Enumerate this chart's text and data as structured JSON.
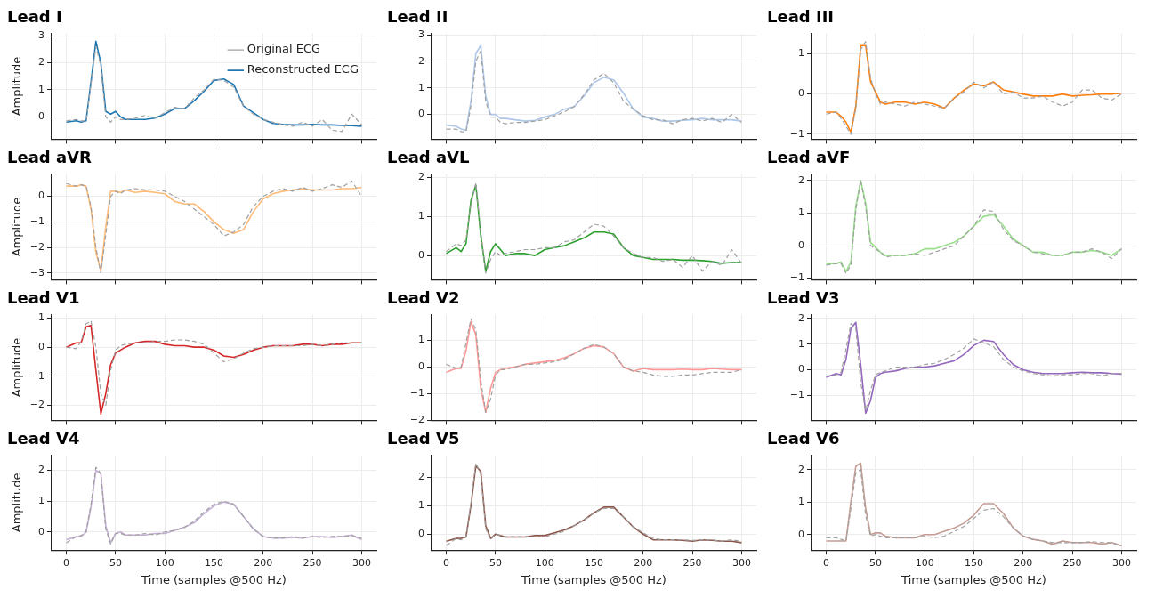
{
  "chart_data": [
    {
      "type": "line",
      "title": "Lead I",
      "ylabel": "Amplitude",
      "tick_labels": "y",
      "grid": true,
      "legend": "top right",
      "x": [
        0,
        10,
        15,
        20,
        25,
        30,
        35,
        40,
        45,
        50,
        55,
        60,
        70,
        80,
        90,
        100,
        110,
        120,
        130,
        140,
        150,
        160,
        170,
        180,
        190,
        200,
        210,
        220,
        230,
        240,
        250,
        260,
        270,
        280,
        290,
        300
      ],
      "xlim": [
        -15,
        315
      ],
      "xticks": [
        0,
        50,
        100,
        150,
        200,
        250,
        300
      ],
      "ylim": [
        -0.83,
        3.09
      ],
      "yticks": [
        0,
        1,
        2,
        3
      ],
      "series": [
        {
          "name": "Original ECG",
          "color": "#a0a0a0",
          "line_style": "dashed",
          "values": [
            -0.15,
            -0.1,
            -0.15,
            -0.15,
            1.2,
            2.6,
            1.9,
            0.0,
            -0.2,
            0.0,
            -0.1,
            -0.1,
            -0.05,
            0.05,
            -0.05,
            0.15,
            0.35,
            0.3,
            0.7,
            1.0,
            1.4,
            1.35,
            1.1,
            0.4,
            0.1,
            -0.1,
            -0.2,
            -0.3,
            -0.35,
            -0.2,
            -0.35,
            -0.1,
            -0.5,
            -0.55,
            0.1,
            -0.3
          ]
        },
        {
          "name": "Reconstructed ECG",
          "color": "#1f77b4",
          "line_style": "solid",
          "values": [
            -0.2,
            -0.15,
            -0.2,
            -0.15,
            1.3,
            2.8,
            2.0,
            0.2,
            0.1,
            0.2,
            0.0,
            -0.1,
            -0.1,
            -0.1,
            -0.05,
            0.1,
            0.3,
            0.3,
            0.6,
            0.95,
            1.35,
            1.4,
            1.2,
            0.4,
            0.15,
            -0.1,
            -0.25,
            -0.28,
            -0.3,
            -0.3,
            -0.28,
            -0.3,
            -0.3,
            -0.32,
            -0.33,
            -0.35
          ]
        }
      ]
    },
    {
      "type": "line",
      "title": "Lead II",
      "tick_labels": "y",
      "grid": true,
      "x": [
        0,
        10,
        15,
        20,
        25,
        30,
        35,
        40,
        45,
        50,
        55,
        60,
        70,
        80,
        90,
        100,
        110,
        120,
        130,
        140,
        150,
        160,
        170,
        180,
        190,
        200,
        210,
        220,
        230,
        240,
        250,
        260,
        270,
        280,
        290,
        300
      ],
      "xlim": [
        -15,
        315
      ],
      "xticks": [
        0,
        50,
        100,
        150,
        200,
        250,
        300
      ],
      "ylim": [
        -0.93,
        3.05
      ],
      "yticks": [
        0,
        1,
        2,
        3
      ],
      "series": [
        {
          "color": "#a0a0a0",
          "line_style": "dashed",
          "values": [
            -0.55,
            -0.55,
            -0.65,
            -0.65,
            0.3,
            2.0,
            2.4,
            0.5,
            -0.1,
            -0.1,
            -0.3,
            -0.35,
            -0.3,
            -0.3,
            -0.25,
            -0.2,
            -0.05,
            0.1,
            0.3,
            0.75,
            1.3,
            1.55,
            1.2,
            0.5,
            0.2,
            -0.05,
            -0.2,
            -0.2,
            -0.35,
            -0.2,
            -0.15,
            -0.25,
            -0.15,
            -0.3,
            0.0,
            -0.3
          ]
        },
        {
          "color": "#aec7e8",
          "line_style": "solid",
          "values": [
            -0.4,
            -0.45,
            -0.55,
            -0.6,
            0.5,
            2.3,
            2.6,
            0.7,
            0.0,
            0.0,
            -0.15,
            -0.15,
            -0.2,
            -0.25,
            -0.22,
            -0.1,
            0.0,
            0.2,
            0.3,
            0.7,
            1.2,
            1.4,
            1.3,
            0.8,
            0.2,
            -0.1,
            -0.15,
            -0.25,
            -0.25,
            -0.22,
            -0.2,
            -0.15,
            -0.2,
            -0.2,
            -0.2,
            -0.25
          ]
        }
      ]
    },
    {
      "type": "line",
      "title": "Lead III",
      "tick_labels": "y",
      "grid": true,
      "x": [
        0,
        10,
        15,
        20,
        25,
        30,
        35,
        40,
        45,
        50,
        55,
        60,
        70,
        80,
        90,
        100,
        110,
        120,
        130,
        140,
        150,
        160,
        170,
        180,
        190,
        200,
        210,
        220,
        230,
        240,
        250,
        260,
        270,
        280,
        290,
        300
      ],
      "xlim": [
        -15,
        315
      ],
      "xticks": [
        0,
        50,
        100,
        150,
        200,
        250,
        300
      ],
      "ylim": [
        -1.12,
        1.5
      ],
      "yticks": [
        -1,
        0,
        1
      ],
      "series": [
        {
          "color": "#a0a0a0",
          "line_style": "dashed",
          "values": [
            -0.5,
            -0.45,
            -0.6,
            -0.8,
            -1.0,
            -0.35,
            1.1,
            1.3,
            0.4,
            0.0,
            -0.25,
            -0.2,
            -0.25,
            -0.3,
            -0.2,
            -0.25,
            -0.3,
            -0.35,
            -0.1,
            0.05,
            0.3,
            0.15,
            0.3,
            0.0,
            0.05,
            -0.1,
            -0.1,
            -0.05,
            -0.2,
            -0.3,
            -0.2,
            0.1,
            0.1,
            -0.1,
            -0.15,
            0.0
          ]
        },
        {
          "color": "#ff7f0e",
          "line_style": "solid",
          "values": [
            -0.45,
            -0.45,
            -0.55,
            -0.7,
            -0.95,
            -0.3,
            1.2,
            1.2,
            0.3,
            0.05,
            -0.2,
            -0.25,
            -0.2,
            -0.2,
            -0.25,
            -0.2,
            -0.25,
            -0.35,
            -0.1,
            0.1,
            0.25,
            0.2,
            0.3,
            0.1,
            0.05,
            0.0,
            -0.05,
            -0.05,
            -0.05,
            0.0,
            -0.05,
            -0.03,
            -0.02,
            0.0,
            0.0,
            0.02
          ]
        }
      ]
    },
    {
      "type": "line",
      "title": "Lead aVR",
      "ylabel": "Amplitude",
      "tick_labels": "y",
      "grid": true,
      "x": [
        0,
        10,
        15,
        20,
        25,
        30,
        35,
        40,
        45,
        50,
        55,
        60,
        70,
        80,
        90,
        100,
        110,
        120,
        130,
        140,
        150,
        160,
        170,
        180,
        190,
        200,
        210,
        220,
        230,
        240,
        250,
        260,
        270,
        280,
        290,
        300
      ],
      "xlim": [
        -15,
        315
      ],
      "xticks": [
        0,
        50,
        100,
        150,
        200,
        250,
        300
      ],
      "ylim": [
        -3.26,
        0.87
      ],
      "yticks": [
        -3,
        -2,
        -1,
        0
      ],
      "series": [
        {
          "color": "#a0a0a0",
          "line_style": "dashed",
          "values": [
            0.5,
            0.4,
            0.45,
            0.4,
            -0.4,
            -2.0,
            -3.0,
            -1.5,
            0.0,
            0.2,
            0.1,
            0.25,
            0.3,
            0.25,
            0.25,
            0.2,
            0.0,
            -0.2,
            -0.5,
            -0.8,
            -1.1,
            -1.55,
            -1.4,
            -1.1,
            -0.4,
            0.0,
            0.2,
            0.3,
            0.2,
            0.35,
            0.2,
            0.3,
            0.45,
            0.35,
            0.6,
            0.0
          ]
        },
        {
          "color": "#ffbb78",
          "line_style": "solid",
          "values": [
            0.4,
            0.4,
            0.45,
            0.4,
            -0.5,
            -2.2,
            -2.9,
            -1.2,
            0.2,
            0.2,
            0.15,
            0.25,
            0.15,
            0.2,
            0.15,
            0.1,
            -0.2,
            -0.3,
            -0.3,
            -0.6,
            -1.0,
            -1.3,
            -1.45,
            -1.3,
            -0.6,
            -0.1,
            0.1,
            0.2,
            0.25,
            0.3,
            0.25,
            0.25,
            0.25,
            0.3,
            0.3,
            0.35
          ]
        }
      ]
    },
    {
      "type": "line",
      "title": "Lead aVL",
      "tick_labels": "y",
      "grid": true,
      "x": [
        0,
        10,
        15,
        20,
        25,
        30,
        35,
        40,
        45,
        50,
        55,
        60,
        70,
        80,
        90,
        100,
        110,
        120,
        130,
        140,
        150,
        160,
        170,
        180,
        190,
        200,
        210,
        220,
        230,
        240,
        250,
        260,
        270,
        280,
        290,
        300
      ],
      "xlim": [
        -15,
        315
      ],
      "xticks": [
        0,
        50,
        100,
        150,
        200,
        250,
        300
      ],
      "ylim": [
        -0.62,
        2.08
      ],
      "yticks": [
        0,
        1,
        2
      ],
      "series": [
        {
          "color": "#a0a0a0",
          "line_style": "dashed",
          "values": [
            0.1,
            0.3,
            0.25,
            0.4,
            1.3,
            1.85,
            0.6,
            -0.45,
            -0.1,
            0.1,
            0.0,
            0.05,
            0.1,
            0.15,
            0.15,
            0.2,
            0.2,
            0.35,
            0.4,
            0.6,
            0.8,
            0.75,
            0.5,
            0.2,
            0.05,
            -0.05,
            -0.05,
            -0.15,
            -0.1,
            -0.3,
            0.0,
            -0.4,
            -0.15,
            -0.25,
            0.15,
            -0.2
          ]
        },
        {
          "color": "#2ca02c",
          "line_style": "solid",
          "values": [
            0.05,
            0.2,
            0.1,
            0.3,
            1.4,
            1.8,
            0.5,
            -0.4,
            0.1,
            0.3,
            0.15,
            0.0,
            0.05,
            0.05,
            0.0,
            0.15,
            0.2,
            0.25,
            0.35,
            0.45,
            0.6,
            0.6,
            0.55,
            0.2,
            0.0,
            -0.05,
            -0.1,
            -0.1,
            -0.1,
            -0.12,
            -0.12,
            -0.13,
            -0.15,
            -0.2,
            -0.18,
            -0.18
          ]
        }
      ]
    },
    {
      "type": "line",
      "title": "Lead aVF",
      "tick_labels": "y",
      "grid": true,
      "x": [
        0,
        10,
        15,
        20,
        25,
        30,
        35,
        40,
        45,
        50,
        55,
        60,
        70,
        80,
        90,
        100,
        110,
        120,
        130,
        140,
        150,
        160,
        170,
        180,
        190,
        200,
        210,
        220,
        230,
        240,
        250,
        260,
        270,
        280,
        290,
        300
      ],
      "xlim": [
        -15,
        315
      ],
      "xticks": [
        0,
        50,
        100,
        150,
        200,
        250,
        300
      ],
      "ylim": [
        -1.05,
        2.2
      ],
      "yticks": [
        -1,
        0,
        1,
        2
      ],
      "series": [
        {
          "color": "#a0a0a0",
          "line_style": "dashed",
          "values": [
            -0.6,
            -0.55,
            -0.55,
            -0.85,
            -0.6,
            1.1,
            2.0,
            1.2,
            0.0,
            -0.1,
            -0.2,
            -0.35,
            -0.3,
            -0.3,
            -0.25,
            -0.3,
            -0.2,
            -0.1,
            0.0,
            0.3,
            0.6,
            1.1,
            1.05,
            0.5,
            0.15,
            0.0,
            -0.2,
            -0.25,
            -0.3,
            -0.3,
            -0.2,
            -0.2,
            -0.1,
            -0.2,
            -0.4,
            -0.1
          ]
        },
        {
          "color": "#98df8a",
          "line_style": "solid",
          "values": [
            -0.55,
            -0.55,
            -0.5,
            -0.8,
            -0.5,
            1.2,
            2.0,
            1.3,
            0.1,
            -0.05,
            -0.2,
            -0.3,
            -0.3,
            -0.3,
            -0.25,
            -0.1,
            -0.1,
            0.0,
            0.1,
            0.3,
            0.6,
            0.9,
            0.95,
            0.6,
            0.2,
            0.0,
            -0.2,
            -0.2,
            -0.3,
            -0.3,
            -0.2,
            -0.2,
            -0.15,
            -0.2,
            -0.3,
            -0.1
          ]
        }
      ]
    },
    {
      "type": "line",
      "title": "Lead V1",
      "ylabel": "Amplitude",
      "tick_labels": "y",
      "grid": true,
      "x": [
        0,
        10,
        15,
        20,
        25,
        30,
        35,
        40,
        45,
        50,
        55,
        60,
        70,
        80,
        90,
        100,
        110,
        120,
        130,
        140,
        150,
        160,
        170,
        180,
        190,
        200,
        210,
        220,
        230,
        240,
        250,
        260,
        270,
        280,
        290,
        300
      ],
      "xlim": [
        -15,
        315
      ],
      "xticks": [
        0,
        50,
        100,
        150,
        200,
        250,
        300
      ],
      "ylim": [
        -2.52,
        1.12
      ],
      "yticks": [
        -2,
        -1,
        0,
        1
      ],
      "series": [
        {
          "color": "#a0a0a0",
          "line_style": "dashed",
          "values": [
            0.0,
            -0.05,
            0.2,
            0.8,
            0.9,
            0.0,
            -1.6,
            -2.0,
            -0.8,
            -0.1,
            0.05,
            0.1,
            0.15,
            0.15,
            0.2,
            0.2,
            0.25,
            0.25,
            0.2,
            0.1,
            -0.2,
            -0.5,
            -0.4,
            -0.2,
            -0.05,
            0.0,
            0.05,
            0.05,
            0.05,
            0.05,
            0.1,
            0.05,
            0.1,
            0.15,
            0.15,
            0.15
          ]
        },
        {
          "color": "#d62728",
          "line_style": "solid",
          "values": [
            0.0,
            0.15,
            0.15,
            0.7,
            0.75,
            -0.8,
            -2.3,
            -1.6,
            -0.6,
            -0.2,
            -0.1,
            0.0,
            0.15,
            0.2,
            0.2,
            0.1,
            0.05,
            0.05,
            0.0,
            0.0,
            -0.1,
            -0.3,
            -0.35,
            -0.25,
            -0.1,
            0.0,
            0.05,
            0.05,
            0.05,
            0.1,
            0.1,
            0.05,
            0.1,
            0.1,
            0.15,
            0.15
          ]
        }
      ]
    },
    {
      "type": "line",
      "title": "Lead V2",
      "tick_labels": "y",
      "grid": true,
      "x": [
        0,
        10,
        15,
        20,
        25,
        30,
        35,
        40,
        45,
        50,
        55,
        60,
        70,
        80,
        90,
        100,
        110,
        120,
        130,
        140,
        150,
        160,
        170,
        180,
        190,
        200,
        210,
        220,
        230,
        240,
        250,
        260,
        270,
        280,
        290,
        300
      ],
      "xlim": [
        -15,
        315
      ],
      "xticks": [
        0,
        50,
        100,
        150,
        200,
        250,
        300
      ],
      "ylim": [
        -2,
        1.96
      ],
      "yticks": [
        -2,
        -1,
        0,
        1
      ],
      "series": [
        {
          "color": "#a0a0a0",
          "line_style": "dashed",
          "values": [
            0.1,
            -0.05,
            0.0,
            0.9,
            1.8,
            1.4,
            -0.5,
            -1.7,
            -1.2,
            -0.3,
            -0.1,
            -0.1,
            0.0,
            0.1,
            0.1,
            0.15,
            0.2,
            0.3,
            0.5,
            0.7,
            0.85,
            0.75,
            0.5,
            0.0,
            -0.15,
            -0.2,
            -0.3,
            -0.35,
            -0.35,
            -0.3,
            -0.3,
            -0.25,
            -0.2,
            -0.2,
            -0.2,
            -0.1
          ]
        },
        {
          "color": "#ff9896",
          "line_style": "solid",
          "values": [
            -0.2,
            -0.05,
            -0.05,
            0.6,
            1.7,
            1.2,
            -0.8,
            -1.7,
            -0.8,
            -0.2,
            -0.1,
            -0.05,
            0.0,
            0.1,
            0.15,
            0.2,
            0.25,
            0.35,
            0.5,
            0.7,
            0.8,
            0.75,
            0.5,
            0.0,
            -0.15,
            -0.05,
            -0.1,
            -0.1,
            -0.1,
            -0.08,
            -0.1,
            -0.1,
            -0.05,
            -0.08,
            -0.1,
            -0.1
          ]
        }
      ]
    },
    {
      "type": "line",
      "title": "Lead V3",
      "tick_labels": "y",
      "grid": true,
      "x": [
        0,
        10,
        15,
        20,
        25,
        30,
        35,
        40,
        45,
        50,
        55,
        60,
        70,
        80,
        90,
        100,
        110,
        120,
        130,
        140,
        150,
        160,
        170,
        180,
        190,
        200,
        210,
        220,
        230,
        240,
        250,
        260,
        270,
        280,
        290,
        300
      ],
      "xlim": [
        -15,
        315
      ],
      "xticks": [
        0,
        50,
        100,
        150,
        200,
        250,
        300
      ],
      "ylim": [
        -1.98,
        2.15
      ],
      "yticks": [
        -1,
        0,
        1,
        2
      ],
      "series": [
        {
          "color": "#a0a0a0",
          "line_style": "dashed",
          "values": [
            -0.25,
            -0.2,
            -0.1,
            0.8,
            1.8,
            1.6,
            -0.5,
            -1.6,
            -0.8,
            -0.2,
            -0.1,
            -0.05,
            0.1,
            0.1,
            0.1,
            0.2,
            0.25,
            0.4,
            0.6,
            0.85,
            1.2,
            1.05,
            0.9,
            0.4,
            0.1,
            -0.05,
            -0.15,
            -0.2,
            -0.25,
            -0.2,
            -0.2,
            -0.15,
            -0.15,
            -0.25,
            -0.15,
            -0.15
          ]
        },
        {
          "color": "#9467bd",
          "line_style": "solid",
          "values": [
            -0.3,
            -0.15,
            -0.2,
            0.4,
            1.6,
            1.85,
            0.2,
            -1.7,
            -1.2,
            -0.3,
            -0.15,
            -0.1,
            -0.05,
            0.05,
            0.1,
            0.1,
            0.15,
            0.25,
            0.35,
            0.6,
            0.95,
            1.15,
            1.1,
            0.6,
            0.2,
            0.0,
            -0.1,
            -0.15,
            -0.15,
            -0.15,
            -0.12,
            -0.1,
            -0.12,
            -0.12,
            -0.15,
            -0.17
          ]
        }
      ]
    },
    {
      "type": "line",
      "title": "Lead V4",
      "ylabel": "Amplitude",
      "xlabel": "Time (samples @500 Hz)",
      "grid": true,
      "x": [
        0,
        10,
        15,
        20,
        25,
        30,
        35,
        40,
        45,
        50,
        55,
        60,
        70,
        80,
        90,
        100,
        110,
        120,
        130,
        140,
        150,
        160,
        170,
        180,
        190,
        200,
        210,
        220,
        230,
        240,
        250,
        260,
        270,
        280,
        290,
        300
      ],
      "xlim": [
        -15,
        315
      ],
      "xticks": [
        0,
        50,
        100,
        150,
        200,
        250,
        300
      ],
      "ylim": [
        -0.59,
        2.49
      ],
      "yticks": [
        0,
        1,
        2
      ],
      "series": [
        {
          "color": "#a0a0a0",
          "line_style": "dashed",
          "values": [
            -0.35,
            -0.15,
            -0.12,
            0.0,
            0.9,
            2.1,
            1.9,
            0.1,
            -0.4,
            -0.05,
            -0.05,
            -0.1,
            -0.1,
            -0.05,
            -0.1,
            0.0,
            0.05,
            0.15,
            0.35,
            0.65,
            0.9,
            1.0,
            0.9,
            0.5,
            0.1,
            -0.15,
            -0.2,
            -0.2,
            -0.15,
            -0.2,
            -0.15,
            -0.18,
            -0.15,
            -0.15,
            -0.12,
            -0.2
          ]
        },
        {
          "color": "#c5b0d5",
          "line_style": "solid",
          "values": [
            -0.25,
            -0.15,
            -0.15,
            0.0,
            0.8,
            2.0,
            1.9,
            0.2,
            -0.35,
            -0.05,
            0.0,
            -0.1,
            -0.1,
            -0.1,
            -0.05,
            -0.05,
            0.05,
            0.15,
            0.3,
            0.6,
            0.85,
            0.97,
            0.9,
            0.5,
            0.1,
            -0.15,
            -0.2,
            -0.2,
            -0.18,
            -0.2,
            -0.15,
            -0.15,
            -0.18,
            -0.15,
            -0.1,
            -0.25
          ]
        }
      ]
    },
    {
      "type": "line",
      "title": "Lead V5",
      "xlabel": "Time (samples @500 Hz)",
      "grid": true,
      "x": [
        0,
        10,
        15,
        20,
        25,
        30,
        35,
        40,
        45,
        50,
        55,
        60,
        70,
        80,
        90,
        100,
        110,
        120,
        130,
        140,
        150,
        160,
        170,
        180,
        190,
        200,
        210,
        220,
        230,
        240,
        250,
        260,
        270,
        280,
        290,
        300
      ],
      "xlim": [
        -15,
        315
      ],
      "xticks": [
        0,
        50,
        100,
        150,
        200,
        250,
        300
      ],
      "ylim": [
        -0.56,
        2.77
      ],
      "yticks": [
        0,
        1,
        2
      ],
      "series": [
        {
          "color": "#a0a0a0",
          "line_style": "dashed",
          "values": [
            -0.4,
            -0.15,
            -0.2,
            -0.1,
            1.1,
            2.5,
            2.1,
            0.2,
            -0.2,
            0.0,
            -0.05,
            -0.1,
            -0.1,
            -0.1,
            -0.1,
            -0.1,
            0.0,
            0.1,
            0.3,
            0.5,
            0.75,
            0.9,
            0.9,
            0.6,
            0.25,
            0.05,
            -0.15,
            -0.2,
            -0.2,
            -0.2,
            -0.22,
            -0.2,
            -0.2,
            -0.25,
            -0.2,
            -0.25
          ]
        },
        {
          "color": "#8c564b",
          "line_style": "solid",
          "values": [
            -0.25,
            -0.15,
            -0.15,
            -0.1,
            1.0,
            2.4,
            2.2,
            0.3,
            -0.15,
            0.0,
            -0.05,
            -0.1,
            -0.1,
            -0.1,
            -0.05,
            -0.05,
            0.05,
            0.15,
            0.3,
            0.5,
            0.75,
            0.95,
            0.95,
            0.6,
            0.25,
            0.0,
            -0.2,
            -0.2,
            -0.2,
            -0.22,
            -0.25,
            -0.2,
            -0.22,
            -0.25,
            -0.25,
            -0.3
          ]
        }
      ]
    },
    {
      "type": "line",
      "title": "Lead V6",
      "xlabel": "Time (samples @500 Hz)",
      "grid": true,
      "x": [
        0,
        10,
        15,
        20,
        25,
        30,
        35,
        40,
        45,
        50,
        55,
        60,
        70,
        80,
        90,
        100,
        110,
        120,
        130,
        140,
        150,
        160,
        170,
        180,
        190,
        200,
        210,
        220,
        230,
        240,
        250,
        260,
        270,
        280,
        290,
        300
      ],
      "xlim": [
        -15,
        315
      ],
      "xticks": [
        0,
        50,
        100,
        150,
        200,
        250,
        300
      ],
      "ylim": [
        -0.48,
        2.44
      ],
      "yticks": [
        0,
        1,
        2
      ],
      "series": [
        {
          "color": "#a0a0a0",
          "line_style": "dashed",
          "values": [
            -0.1,
            -0.1,
            -0.15,
            -0.2,
            0.8,
            1.9,
            2.0,
            0.6,
            -0.05,
            0.0,
            -0.05,
            -0.1,
            -0.1,
            -0.1,
            -0.1,
            -0.05,
            -0.1,
            -0.05,
            0.1,
            0.25,
            0.5,
            0.75,
            0.8,
            0.55,
            0.2,
            -0.05,
            -0.15,
            -0.2,
            -0.25,
            -0.25,
            -0.25,
            -0.25,
            -0.22,
            -0.25,
            -0.25,
            -0.35
          ]
        },
        {
          "color": "#c49c94",
          "line_style": "solid",
          "values": [
            -0.2,
            -0.2,
            -0.2,
            -0.2,
            1.0,
            2.1,
            2.2,
            0.8,
            0.0,
            0.05,
            0.05,
            -0.05,
            -0.1,
            -0.1,
            -0.1,
            0.0,
            0.0,
            0.1,
            0.2,
            0.35,
            0.6,
            0.95,
            0.95,
            0.65,
            0.2,
            -0.05,
            -0.15,
            -0.2,
            -0.3,
            -0.2,
            -0.25,
            -0.25,
            -0.25,
            -0.3,
            -0.25,
            -0.35
          ]
        }
      ]
    }
  ]
}
